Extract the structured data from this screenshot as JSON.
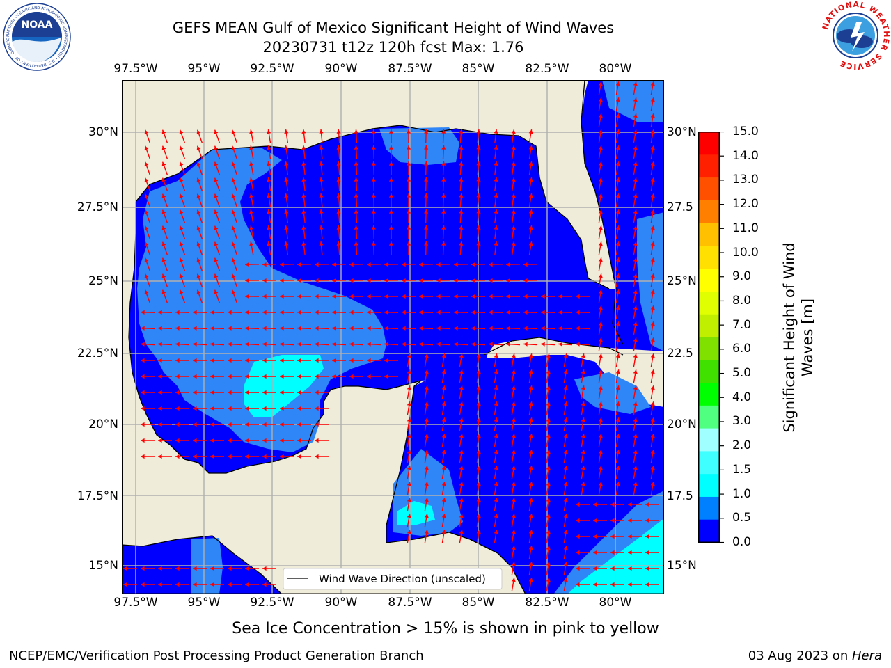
{
  "header": {
    "title_line1": "GEFS MEAN Gulf of Mexico Significant Height of Wind Waves",
    "title_line2": "20230731 t12z 120h fcst   Max: 1.76"
  },
  "logos": {
    "left": "NOAA",
    "left_ring": "NATIONAL OCEANIC AND ATMOSPHERIC ADMINISTRATION • U.S. DEPARTMENT OF COMMERCE",
    "right_ring": "NATIONAL WEATHER SERVICE"
  },
  "axes": {
    "lon_labels": [
      "97.5°W",
      "95°W",
      "92.5°W",
      "90°W",
      "87.5°W",
      "85°W",
      "82.5°W",
      "80°W"
    ],
    "lat_labels_left": [
      "30°N",
      "27.5°N",
      "25°N",
      "22.5°N",
      "20°N",
      "17.5°N",
      "15°N"
    ],
    "lat_labels_right": [
      "30°N",
      "27.5",
      "25°N",
      "22.5",
      "20°N",
      "17.5",
      "15°N"
    ],
    "lon_range": [
      -98,
      -78.2
    ],
    "lat_range": [
      14,
      31.6
    ]
  },
  "legend": {
    "entry": "Wind Wave Direction (unscaled)"
  },
  "colorbar": {
    "label_line1": "Significant Height of Wind",
    "label_line2": "Waves [m]",
    "ticks": [
      "0.0",
      "0.5",
      "1.0",
      "1.5",
      "2.0",
      "3.0",
      "4.0",
      "5.0",
      "6.0",
      "7.0",
      "8.0",
      "9.0",
      "10.0",
      "11.0",
      "12.0",
      "13.0",
      "14.0",
      "15.0"
    ],
    "colors": [
      "#0000ff",
      "#0080ff",
      "#00ffff",
      "#40ffff",
      "#a0ffff",
      "#50ff80",
      "#00ff00",
      "#40e000",
      "#80e000",
      "#c0f000",
      "#e0ff00",
      "#ffff00",
      "#ffe000",
      "#ffc000",
      "#ff8000",
      "#ff5000",
      "#ff2000",
      "#ff0000"
    ]
  },
  "map_colors": {
    "land": "#efedda",
    "ocean_low": "#0000ff",
    "ocean_mid": "#2e86f7",
    "ocean_high": "#00ffff",
    "arrow": "#ff0000"
  },
  "caption": "Sea Ice Concentration > 15% is shown in pink to yellow",
  "footer": {
    "left": "NCEP/EMC/Verification Post Processing Product Generation Branch",
    "right_date": "03 Aug 2023 on ",
    "right_machine": "Hera"
  }
}
